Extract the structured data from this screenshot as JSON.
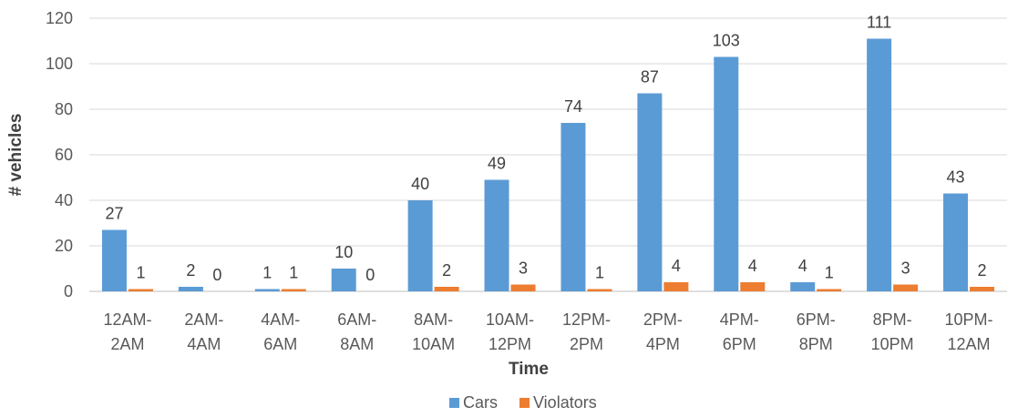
{
  "chart_data": {
    "type": "bar",
    "title": "",
    "xlabel": "Time",
    "ylabel": "# vehicles",
    "ylim": [
      0,
      120
    ],
    "yticks": [
      0,
      20,
      40,
      60,
      80,
      100,
      120
    ],
    "grid": true,
    "legend": "bottom",
    "categories": [
      [
        "12AM-",
        "2AM"
      ],
      [
        "2AM-",
        "4AM"
      ],
      [
        "4AM-",
        "6AM"
      ],
      [
        "6AM-",
        "8AM"
      ],
      [
        "8AM-",
        "10AM"
      ],
      [
        "10AM-",
        "12PM"
      ],
      [
        "12PM-",
        "2PM"
      ],
      [
        "2PM-",
        "4PM"
      ],
      [
        "4PM-",
        "6PM"
      ],
      [
        "6PM-",
        "8PM"
      ],
      [
        "8PM-",
        "10PM"
      ],
      [
        "10PM-",
        "12AM"
      ]
    ],
    "series": [
      {
        "name": "Cars",
        "color": "#5B9BD5",
        "values": [
          27,
          2,
          1,
          10,
          40,
          49,
          74,
          87,
          103,
          4,
          111,
          43
        ]
      },
      {
        "name": "Violators",
        "color": "#ED7D31",
        "values": [
          1,
          0,
          1,
          0,
          2,
          3,
          1,
          4,
          4,
          1,
          3,
          2
        ]
      }
    ]
  }
}
